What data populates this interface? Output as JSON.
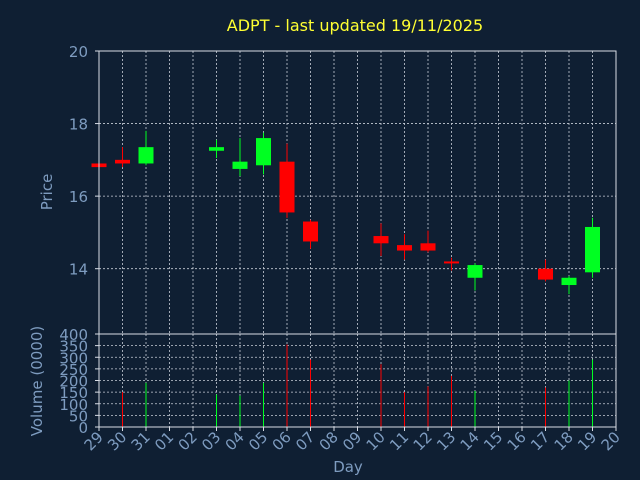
{
  "chart_data": {
    "type": "candlestick",
    "title": "ADPT - last updated 19/11/2025",
    "xlabel": "Day",
    "price_panel": {
      "ylabel": "Price",
      "ylim": [
        12.2,
        20
      ],
      "yticks": [
        14,
        16,
        18,
        20
      ]
    },
    "volume_panel": {
      "ylabel": "Volume (0000)",
      "ylim": [
        0,
        400
      ],
      "yticks": [
        0,
        50,
        100,
        150,
        200,
        250,
        300,
        350,
        400
      ]
    },
    "x_ticks": [
      "29",
      "30",
      "31",
      "01",
      "02",
      "03",
      "04",
      "05",
      "06",
      "07",
      "08",
      "09",
      "10",
      "11",
      "12",
      "13",
      "14",
      "15",
      "16",
      "17",
      "18",
      "19",
      "20"
    ],
    "candles": [
      {
        "day": "29",
        "open": 16.9,
        "high": 16.95,
        "low": 16.75,
        "close": 16.8,
        "volume": 0
      },
      {
        "day": "30",
        "open": 17.0,
        "high": 17.35,
        "low": 16.8,
        "close": 16.9,
        "volume": 150
      },
      {
        "day": "31",
        "open": 16.9,
        "high": 17.8,
        "low": 16.85,
        "close": 17.35,
        "volume": 190
      },
      {
        "day": "03",
        "open": 17.25,
        "high": 17.55,
        "low": 17.05,
        "close": 17.35,
        "volume": 140
      },
      {
        "day": "04",
        "open": 16.75,
        "high": 17.6,
        "low": 16.55,
        "close": 16.95,
        "volume": 135
      },
      {
        "day": "05",
        "open": 16.85,
        "high": 17.75,
        "low": 16.6,
        "close": 17.6,
        "volume": 190
      },
      {
        "day": "06",
        "open": 16.95,
        "high": 17.45,
        "low": 15.4,
        "close": 15.55,
        "volume": 355
      },
      {
        "day": "07",
        "open": 15.3,
        "high": 15.35,
        "low": 14.55,
        "close": 14.75,
        "volume": 290
      },
      {
        "day": "10",
        "open": 14.9,
        "high": 15.25,
        "low": 14.35,
        "close": 14.7,
        "volume": 270
      },
      {
        "day": "11",
        "open": 14.65,
        "high": 14.95,
        "low": 14.25,
        "close": 14.5,
        "volume": 150
      },
      {
        "day": "12",
        "open": 14.7,
        "high": 15.05,
        "low": 14.45,
        "close": 14.5,
        "volume": 175
      },
      {
        "day": "13",
        "open": 14.2,
        "high": 14.3,
        "low": 13.95,
        "close": 14.15,
        "volume": 220
      },
      {
        "day": "14",
        "open": 13.75,
        "high": 14.15,
        "low": 13.4,
        "close": 14.1,
        "volume": 155
      },
      {
        "day": "17",
        "open": 14.0,
        "high": 14.25,
        "low": 13.65,
        "close": 13.7,
        "volume": 170
      },
      {
        "day": "18",
        "open": 13.55,
        "high": 13.8,
        "low": 13.3,
        "close": 13.75,
        "volume": 200
      },
      {
        "day": "19",
        "open": 13.9,
        "high": 15.4,
        "low": 13.75,
        "close": 15.15,
        "volume": 290
      }
    ]
  },
  "colors": {
    "background": "#0f1f33",
    "title": "#ffff33",
    "axis_text": "#7e9cc0",
    "frame": "#d8dde6",
    "grid": "#c8ced8",
    "up": "#00ff22",
    "down": "#ff0000"
  }
}
